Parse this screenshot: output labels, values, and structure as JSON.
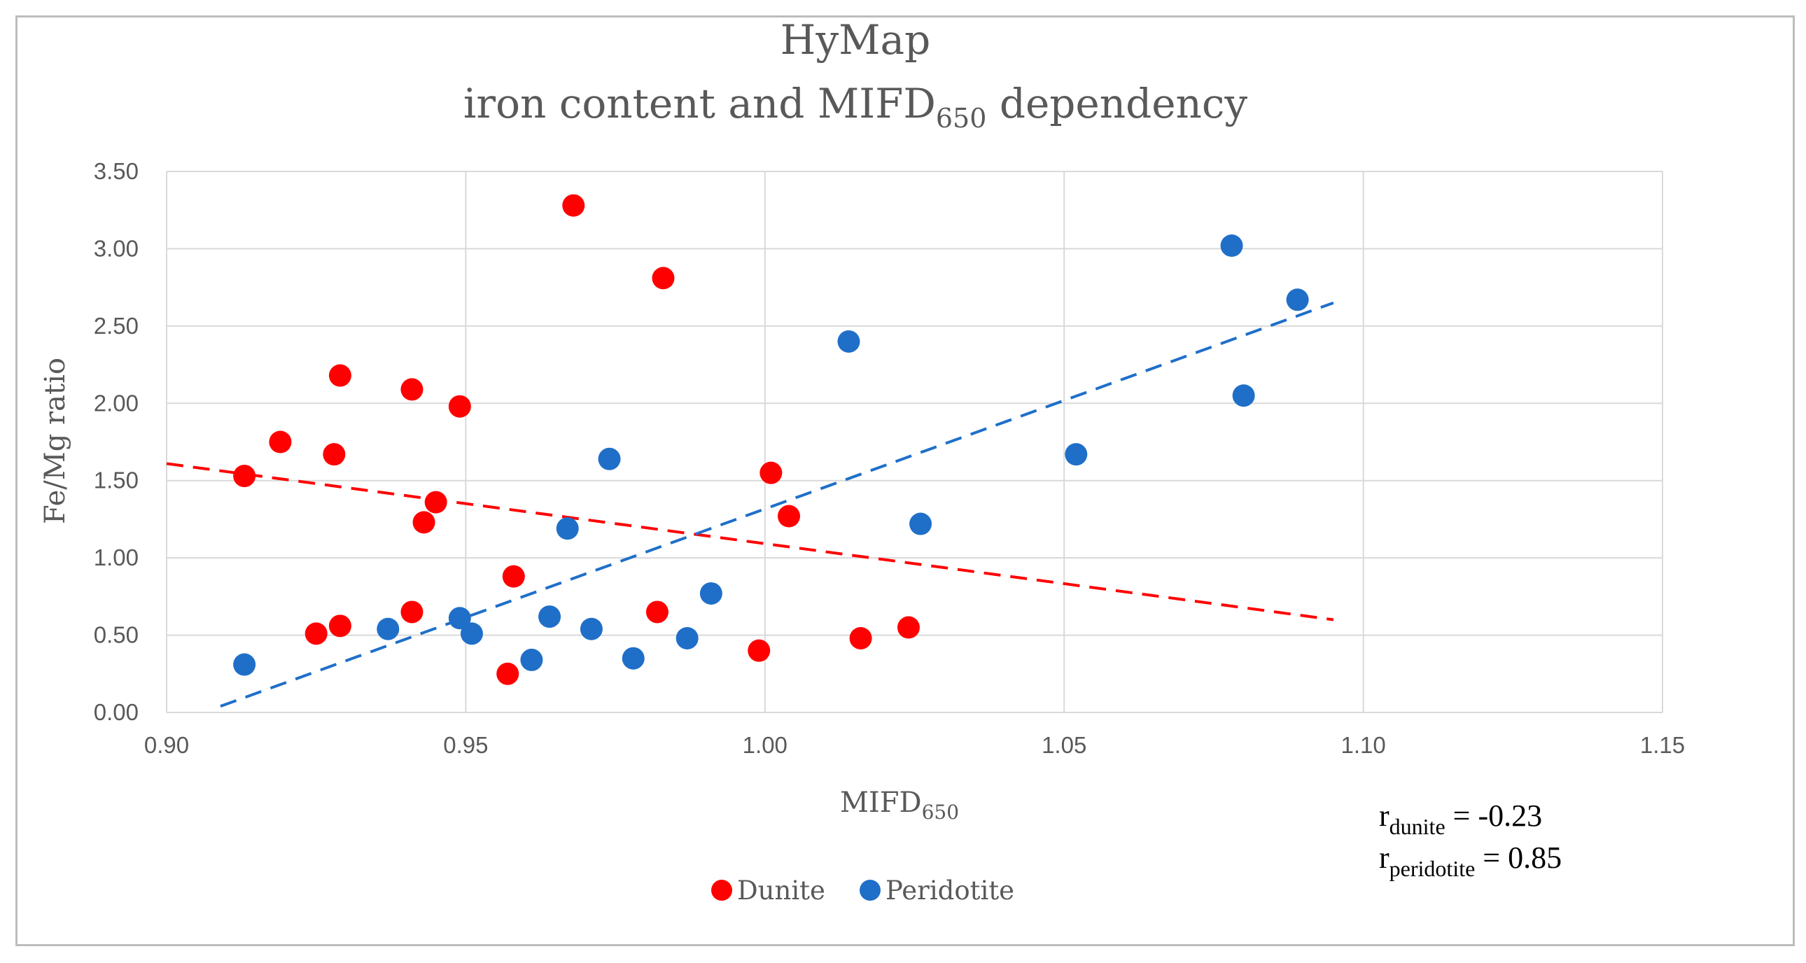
{
  "chart_data": {
    "type": "scatter",
    "title": "HyMap",
    "subtitle": {
      "main": "iron content and MIFD",
      "sub": "650",
      "tail": " dependency"
    },
    "xlabel": {
      "main": "MIFD",
      "sub": "650"
    },
    "ylabel": "Fe/Mg ratio",
    "xlim": [
      0.9,
      1.15
    ],
    "ylim": [
      0.0,
      3.5
    ],
    "xticks": [
      "0.90",
      "0.95",
      "1.00",
      "1.05",
      "1.10",
      "1.15"
    ],
    "yticks": [
      "0.00",
      "0.50",
      "1.00",
      "1.50",
      "2.00",
      "2.50",
      "3.00",
      "3.50"
    ],
    "grid": true,
    "legend_position": "bottom-center",
    "series": [
      {
        "name": "Dunite",
        "color": "#ff0000",
        "points": [
          [
            0.913,
            1.53
          ],
          [
            0.919,
            1.75
          ],
          [
            0.925,
            0.51
          ],
          [
            0.928,
            1.67
          ],
          [
            0.929,
            2.18
          ],
          [
            0.929,
            0.56
          ],
          [
            0.941,
            2.09
          ],
          [
            0.941,
            0.65
          ],
          [
            0.943,
            1.23
          ],
          [
            0.945,
            1.36
          ],
          [
            0.949,
            1.98
          ],
          [
            0.957,
            0.25
          ],
          [
            0.958,
            0.88
          ],
          [
            0.968,
            3.28
          ],
          [
            0.982,
            0.65
          ],
          [
            0.983,
            2.81
          ],
          [
            0.999,
            0.4
          ],
          [
            1.001,
            1.55
          ],
          [
            1.004,
            1.27
          ],
          [
            1.016,
            0.48
          ],
          [
            1.024,
            0.55
          ]
        ],
        "trendline": {
          "x": [
            0.9,
            1.095
          ],
          "y": [
            1.61,
            0.6
          ]
        }
      },
      {
        "name": "Peridotite",
        "color": "#1f6fc9",
        "points": [
          [
            0.913,
            0.31
          ],
          [
            0.937,
            0.54
          ],
          [
            0.949,
            0.61
          ],
          [
            0.951,
            0.51
          ],
          [
            0.961,
            0.34
          ],
          [
            0.964,
            0.62
          ],
          [
            0.967,
            1.19
          ],
          [
            0.971,
            0.54
          ],
          [
            0.974,
            1.64
          ],
          [
            0.978,
            0.35
          ],
          [
            0.987,
            0.48
          ],
          [
            0.991,
            0.77
          ],
          [
            1.014,
            2.4
          ],
          [
            1.026,
            1.22
          ],
          [
            1.052,
            1.67
          ],
          [
            1.078,
            3.02
          ],
          [
            1.08,
            2.05
          ],
          [
            1.089,
            2.67
          ]
        ],
        "trendline": {
          "x": [
            0.909,
            1.095
          ],
          "y": [
            0.04,
            2.65
          ]
        }
      }
    ]
  },
  "annotations": {
    "r_dunite": {
      "base": "r",
      "sub": "dunite",
      "value": " = -0.23"
    },
    "r_peridotite": {
      "base": "r",
      "sub": "peridotite",
      "value": " = 0.85"
    }
  }
}
